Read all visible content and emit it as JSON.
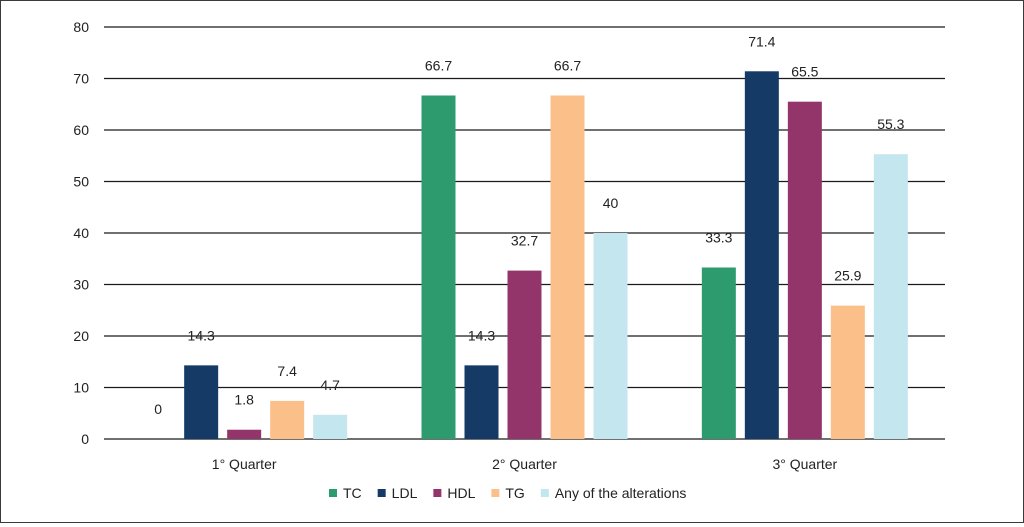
{
  "chart_data": {
    "type": "bar",
    "categories": [
      "1° Quarter",
      "2° Quarter",
      "3° Quarter"
    ],
    "series": [
      {
        "name": "TC",
        "color": "#2e9b6f",
        "values": [
          0,
          66.7,
          33.3
        ]
      },
      {
        "name": "LDL",
        "color": "#163a66",
        "values": [
          14.3,
          14.3,
          71.4
        ]
      },
      {
        "name": "HDL",
        "color": "#93356a",
        "values": [
          1.8,
          32.7,
          65.5
        ]
      },
      {
        "name": "TG",
        "color": "#fbc08a",
        "values": [
          7.4,
          66.7,
          25.9
        ]
      },
      {
        "name": "Any of the alterations",
        "color": "#c4e6ee",
        "values": [
          4.7,
          40,
          55.3
        ]
      }
    ],
    "data_labels": [
      [
        "0",
        "66.7",
        "33.3"
      ],
      [
        "14.3",
        "14.3",
        "71.4"
      ],
      [
        "1.8",
        "32.7",
        "65.5"
      ],
      [
        "7.4",
        "66.7",
        "25.9"
      ],
      [
        "4.7",
        "40",
        "55.3"
      ]
    ],
    "yticks": [
      "0",
      "10",
      "20",
      "30",
      "40",
      "50",
      "60",
      "70",
      "80"
    ],
    "ylim": [
      0,
      80
    ],
    "grid": true,
    "legend_position": "bottom"
  }
}
